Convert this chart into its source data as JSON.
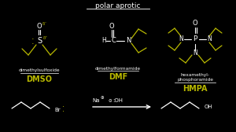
{
  "bg_color": "#000000",
  "white": "#ffffff",
  "yellow": "#b8b800",
  "title_text": "polar aprotic",
  "mol1_name": "dimethylsulfoxide",
  "mol1_abbr": "DMSO",
  "mol2_name": "dimethylformamide",
  "mol2_abbr": "DMF",
  "mol3_name1": "hexamethyl-",
  "mol3_name2": "phosphoramide",
  "mol3_abbr": "HMPA"
}
